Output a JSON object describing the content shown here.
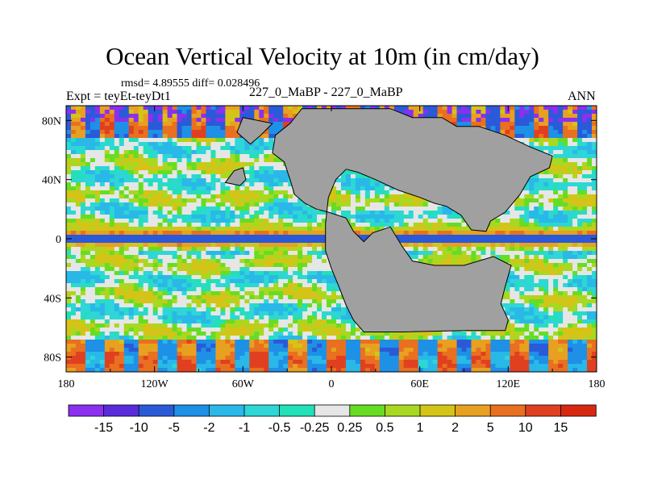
{
  "chart_data": {
    "type": "heatmap",
    "title": "Ocean Vertical Velocity at 10m (in cm/day)",
    "stats_text": "rmsd= 4.89555 diff= 0.028496",
    "experiment_label": "Expt = teyEt-teyDt1",
    "subtitle": "227_0_MaBP - 227_0_MaBP",
    "season": "ANN",
    "x_ticks": [
      "180",
      "120W",
      "60W",
      "0",
      "60E",
      "120E",
      "180"
    ],
    "y_ticks": [
      "80N",
      "40N",
      "0",
      "40S",
      "80S"
    ],
    "x_range": [
      -180,
      180
    ],
    "y_range": [
      -90,
      90
    ],
    "x_tick_values": [
      -180,
      -120,
      -60,
      0,
      60,
      120,
      180
    ],
    "y_tick_values": [
      80,
      40,
      0,
      -40,
      -80
    ],
    "land_color": "#a0a0a0",
    "colorbar": {
      "labels": [
        "-15",
        "-10",
        "-5",
        "-2",
        "-1",
        "-0.5",
        "-0.25",
        "0.25",
        "0.5",
        "1",
        "2",
        "5",
        "10",
        "15"
      ],
      "colors": [
        "#8b2ff0",
        "#5a2bdc",
        "#2a5ad8",
        "#1e90e6",
        "#29b8e8",
        "#2ed6d6",
        "#22e0b8",
        "#e6e6e6",
        "#66dd22",
        "#a8d820",
        "#d4c418",
        "#e8a020",
        "#e87020",
        "#e04020",
        "#d82810"
      ]
    }
  }
}
